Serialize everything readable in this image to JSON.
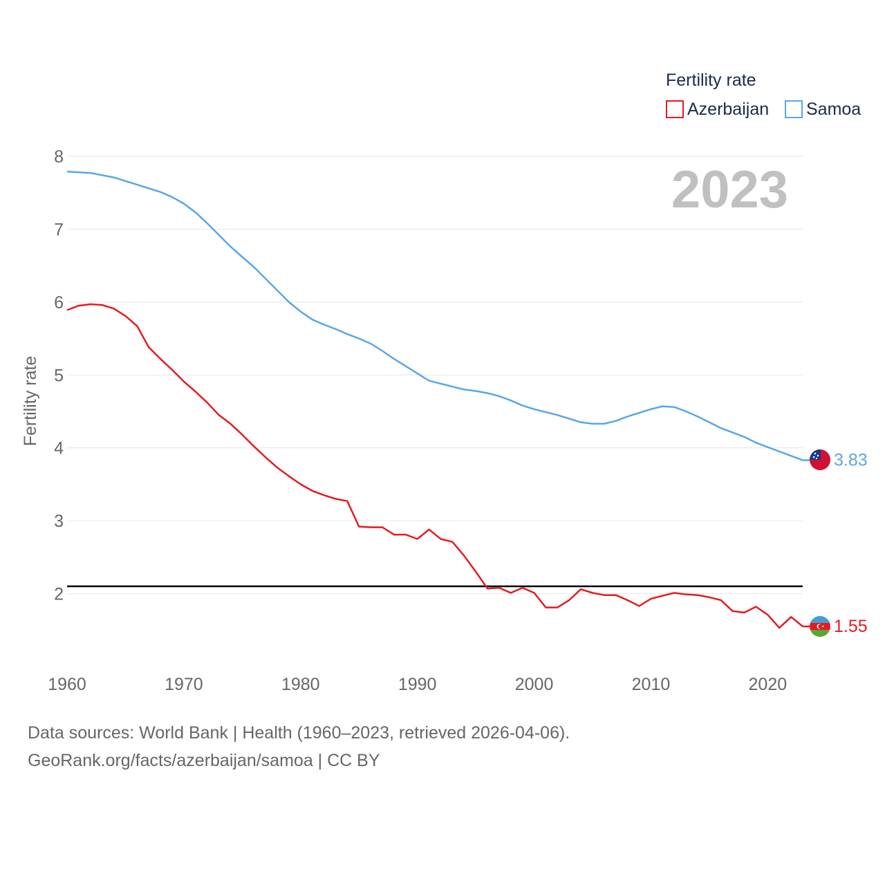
{
  "colors": {
    "azerbaijan": "#e8191f",
    "samoa": "#5aa5e8",
    "grid": "#e6e6e6",
    "axis_text": "#666666",
    "legend_text": "#1b2a4a",
    "year_watermark": "#c0c0c0",
    "reference_line": "#000000"
  },
  "chart_data": {
    "type": "line",
    "title": "",
    "xlabel": "",
    "ylabel": "Fertility rate",
    "xlim": [
      1960,
      2023
    ],
    "ylim": [
      1,
      8
    ],
    "yticks": [
      2,
      3,
      4,
      5,
      6,
      7,
      8
    ],
    "xticks": [
      1960,
      1970,
      1980,
      1990,
      2000,
      2010,
      2020
    ],
    "year_label": "2023",
    "legend": {
      "title": "Fertility rate",
      "placement": "top-right"
    },
    "reference_line": {
      "y": 2.1
    },
    "x": [
      1960,
      1961,
      1962,
      1963,
      1964,
      1965,
      1966,
      1967,
      1968,
      1969,
      1970,
      1971,
      1972,
      1973,
      1974,
      1975,
      1976,
      1977,
      1978,
      1979,
      1980,
      1981,
      1982,
      1983,
      1984,
      1985,
      1986,
      1987,
      1988,
      1989,
      1990,
      1991,
      1992,
      1993,
      1994,
      1995,
      1996,
      1997,
      1998,
      1999,
      2000,
      2001,
      2002,
      2003,
      2004,
      2005,
      2006,
      2007,
      2008,
      2009,
      2010,
      2011,
      2012,
      2013,
      2014,
      2015,
      2016,
      2017,
      2018,
      2019,
      2020,
      2021,
      2022,
      2023
    ],
    "series": [
      {
        "name": "Azerbaijan",
        "key": "azerbaijan",
        "end_label": "1.55",
        "values": [
          5.89,
          5.95,
          5.97,
          5.96,
          5.91,
          5.81,
          5.67,
          5.38,
          5.22,
          5.07,
          4.91,
          4.77,
          4.62,
          4.45,
          4.33,
          4.18,
          4.02,
          3.87,
          3.73,
          3.61,
          3.5,
          3.41,
          3.35,
          3.3,
          3.27,
          2.92,
          2.91,
          2.91,
          2.81,
          2.81,
          2.75,
          2.88,
          2.75,
          2.71,
          2.52,
          2.3,
          2.07,
          2.08,
          2.01,
          2.08,
          2.01,
          1.81,
          1.81,
          1.91,
          2.06,
          2.01,
          1.98,
          1.98,
          1.91,
          1.83,
          1.93,
          1.97,
          2.01,
          1.99,
          1.98,
          1.95,
          1.91,
          1.76,
          1.74,
          1.82,
          1.71,
          1.53,
          1.68,
          1.55
        ]
      },
      {
        "name": "Samoa",
        "key": "samoa",
        "end_label": "3.83",
        "values": [
          7.79,
          7.78,
          7.77,
          7.74,
          7.71,
          7.66,
          7.61,
          7.56,
          7.51,
          7.44,
          7.35,
          7.23,
          7.08,
          6.92,
          6.76,
          6.62,
          6.48,
          6.32,
          6.16,
          6.0,
          5.87,
          5.76,
          5.69,
          5.63,
          5.56,
          5.5,
          5.43,
          5.33,
          5.22,
          5.12,
          5.02,
          4.92,
          4.88,
          4.84,
          4.8,
          4.78,
          4.75,
          4.71,
          4.65,
          4.58,
          4.53,
          4.49,
          4.45,
          4.4,
          4.35,
          4.33,
          4.33,
          4.37,
          4.43,
          4.48,
          4.53,
          4.57,
          4.56,
          4.5,
          4.43,
          4.35,
          4.27,
          4.21,
          4.15,
          4.07,
          4.01,
          3.95,
          3.89,
          3.83
        ]
      }
    ]
  },
  "footer": {
    "line1": "Data sources: World Bank | Health (1960–2023, retrieved 2026-04-06).",
    "line2": "GeoRank.org/facts/azerbaijan/samoa | CC BY"
  }
}
